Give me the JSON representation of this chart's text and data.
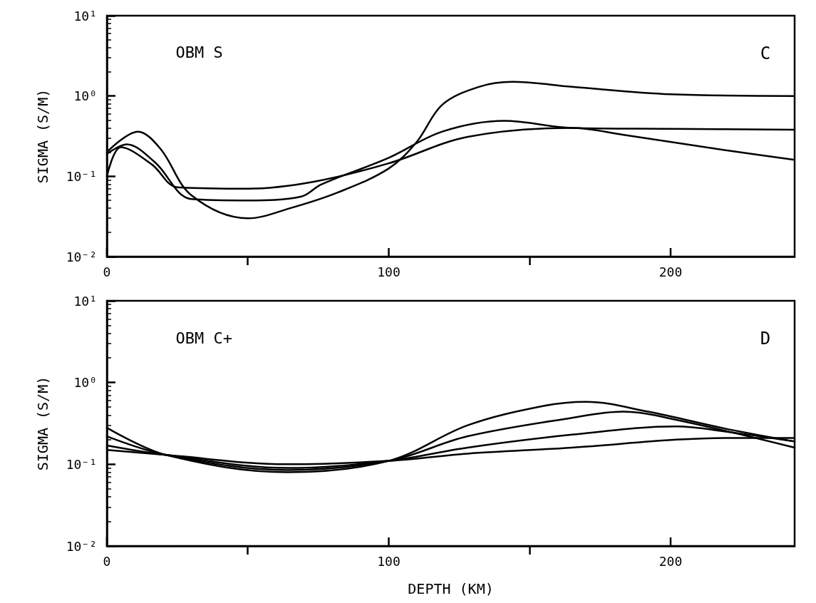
{
  "chart_data": [
    {
      "type": "line",
      "ylabel": "SIGMA (S/M)",
      "annotations": [
        "OBM S",
        "C"
      ],
      "log": "y",
      "grid": false,
      "marker": "none",
      "line_style": "solid",
      "xlim": [
        0,
        244
      ],
      "xticks": [
        0,
        100,
        200
      ],
      "ylim": [
        0.01,
        10
      ],
      "yticks": [
        {
          "value": 0.01,
          "label": "10⁻²"
        },
        {
          "value": 0.1,
          "label": "10⁻¹"
        },
        {
          "value": 1,
          "label": "10⁰"
        },
        {
          "value": 10,
          "label": "10¹"
        }
      ],
      "series": [
        {
          "color": "#000000",
          "x": [
            0,
            11,
            19,
            30,
            50,
            65,
            82,
            100,
            110,
            119,
            132,
            144,
            165,
            200,
            244
          ],
          "values": [
            0.2,
            0.36,
            0.22,
            0.058,
            0.03,
            0.04,
            0.063,
            0.125,
            0.27,
            0.78,
            1.3,
            1.5,
            1.3,
            1.05,
            1.0
          ]
        },
        {
          "color": "#000000",
          "x": [
            0,
            7,
            17,
            30,
            50,
            69,
            76,
            100,
            119,
            141,
            165,
            200,
            244
          ],
          "values": [
            0.19,
            0.25,
            0.15,
            0.052,
            0.05,
            0.056,
            0.079,
            0.17,
            0.36,
            0.49,
            0.4,
            0.39,
            0.38
          ]
        },
        {
          "color": "#000000",
          "x": [
            0,
            5,
            16,
            25,
            50,
            73,
            100,
            128,
            165,
            183,
            220,
            244
          ],
          "values": [
            0.1,
            0.23,
            0.14,
            0.073,
            0.07,
            0.085,
            0.145,
            0.31,
            0.4,
            0.33,
            0.21,
            0.16
          ]
        }
      ]
    },
    {
      "type": "line",
      "xlabel": "DEPTH (KM)",
      "ylabel": "SIGMA (S/M)",
      "annotations": [
        "OBM C+",
        "D"
      ],
      "log": "y",
      "grid": false,
      "marker": "none",
      "line_style": "solid",
      "xlim": [
        0,
        244
      ],
      "xticks": [
        0,
        100,
        200
      ],
      "ylim": [
        0.01,
        10
      ],
      "yticks": [
        {
          "value": 0.01,
          "label": "10⁻²"
        },
        {
          "value": 0.1,
          "label": "10⁻¹"
        },
        {
          "value": 1,
          "label": "10⁰"
        },
        {
          "value": 10,
          "label": "10¹"
        }
      ],
      "series": [
        {
          "color": "#000000",
          "x": [
            0,
            21,
            64,
            100,
            128,
            154,
            170,
            192,
            220,
            244
          ],
          "values": [
            0.28,
            0.13,
            0.08,
            0.11,
            0.3,
            0.51,
            0.58,
            0.44,
            0.27,
            0.19
          ]
        },
        {
          "color": "#000000",
          "x": [
            0,
            21,
            64,
            100,
            128,
            165,
            183,
            202,
            244
          ],
          "values": [
            0.22,
            0.13,
            0.085,
            0.11,
            0.22,
            0.37,
            0.44,
            0.35,
            0.16
          ]
        },
        {
          "color": "#000000",
          "x": [
            0,
            21,
            64,
            100,
            128,
            165,
            202,
            220,
            244
          ],
          "values": [
            0.17,
            0.13,
            0.09,
            0.11,
            0.16,
            0.23,
            0.29,
            0.25,
            0.19
          ]
        },
        {
          "color": "#000000",
          "x": [
            0,
            21,
            64,
            100,
            128,
            165,
            202,
            220,
            244
          ],
          "values": [
            0.15,
            0.13,
            0.1,
            0.11,
            0.135,
            0.16,
            0.2,
            0.21,
            0.21
          ]
        }
      ]
    }
  ]
}
